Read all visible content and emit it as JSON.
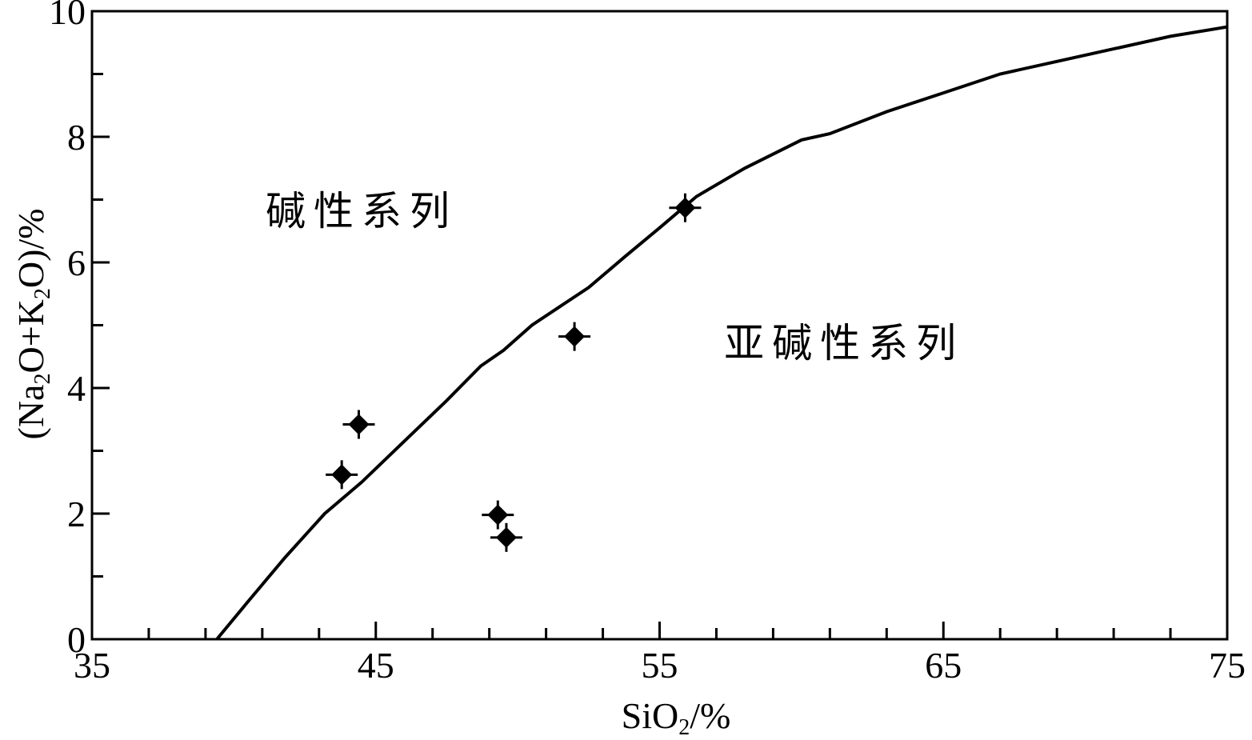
{
  "chart_data": {
    "type": "scatter",
    "xlabel": {
      "base": "SiO",
      "sub": "2",
      "suffix": "/%"
    },
    "ylabel": {
      "open": "(Na",
      "sub1": "2",
      "mid": "O+K",
      "sub2": "2",
      "close": "O)/%"
    },
    "xlim": [
      35,
      75
    ],
    "ylim": [
      0,
      10
    ],
    "x_ticks": [
      "35",
      "45",
      "55",
      "65",
      "75"
    ],
    "x_tick_values": [
      35,
      45,
      55,
      65,
      75
    ],
    "y_ticks": [
      "0",
      "2",
      "4",
      "6",
      "8",
      "10"
    ],
    "y_tick_values": [
      0,
      2,
      4,
      6,
      8,
      10
    ],
    "grid": false,
    "regions": [
      {
        "label": "碱性系列",
        "x": 44.5,
        "y": 6.6
      },
      {
        "label": "亚碱性系列",
        "x": 61.5,
        "y": 4.5
      }
    ],
    "boundary_curve": {
      "x": [
        39.4,
        40.5,
        41.8,
        43.2,
        44.5,
        46.0,
        47.5,
        48.7,
        49.5,
        50.5,
        51.5,
        52.5,
        53.8,
        55.0,
        56.3,
        58.0,
        60.0,
        61.0,
        63.0,
        65.0,
        67.0,
        69.0,
        71.0,
        73.0,
        75.0
      ],
      "y": [
        0.0,
        0.6,
        1.3,
        2.0,
        2.5,
        3.15,
        3.8,
        4.35,
        4.6,
        5.0,
        5.3,
        5.6,
        6.1,
        6.55,
        7.05,
        7.5,
        7.95,
        8.05,
        8.4,
        8.7,
        9.0,
        9.2,
        9.4,
        9.6,
        9.75
      ]
    },
    "points": [
      {
        "x": 43.8,
        "y": 2.62
      },
      {
        "x": 44.4,
        "y": 3.42
      },
      {
        "x": 49.3,
        "y": 1.98
      },
      {
        "x": 49.6,
        "y": 1.62
      },
      {
        "x": 52.0,
        "y": 4.82
      },
      {
        "x": 55.9,
        "y": 6.87
      }
    ]
  }
}
